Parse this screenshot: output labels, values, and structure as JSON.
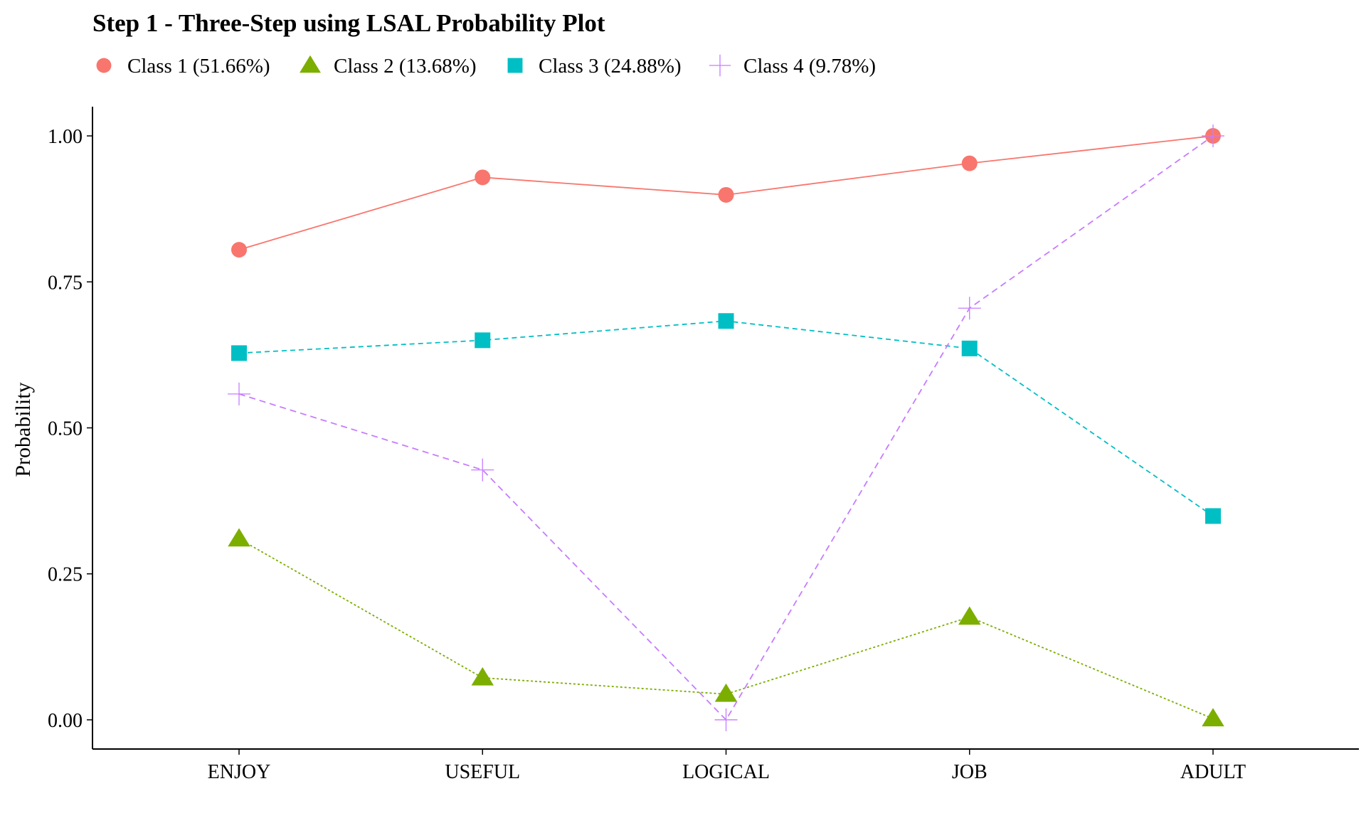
{
  "chart_data": {
    "type": "line",
    "title": "Step 1 - Three-Step using LSAL Probability Plot",
    "xlabel": "",
    "ylabel": "Probability",
    "categories": [
      "ENJOY",
      "USEFUL",
      "LOGICAL",
      "JOB",
      "ADULT"
    ],
    "ylim": [
      -0.05,
      1.05
    ],
    "yticks": [
      0.0,
      0.25,
      0.5,
      0.75,
      1.0
    ],
    "ytick_labels": [
      "0.00",
      "0.25",
      "0.50",
      "0.75",
      "1.00"
    ],
    "grid": false,
    "legend_position": "top-left",
    "series": [
      {
        "name": "Class 1 (51.66%)",
        "values": [
          0.805,
          0.929,
          0.899,
          0.953,
          1.0
        ],
        "color": "#F8766D",
        "marker": "circle",
        "line_style": "solid"
      },
      {
        "name": "Class 2 (13.68%)",
        "values": [
          0.31,
          0.072,
          0.044,
          0.176,
          0.002
        ],
        "color": "#7CAE00",
        "marker": "triangle",
        "line_style": "dotted"
      },
      {
        "name": "Class 3 (24.88%)",
        "values": [
          0.628,
          0.65,
          0.683,
          0.636,
          0.349
        ],
        "color": "#00BFC4",
        "marker": "square",
        "line_style": "dashed"
      },
      {
        "name": "Class 4 (9.78%)",
        "values": [
          0.558,
          0.428,
          0.0,
          0.705,
          1.0
        ],
        "color": "#C77CFF",
        "marker": "plus",
        "line_style": "longdash"
      }
    ]
  }
}
